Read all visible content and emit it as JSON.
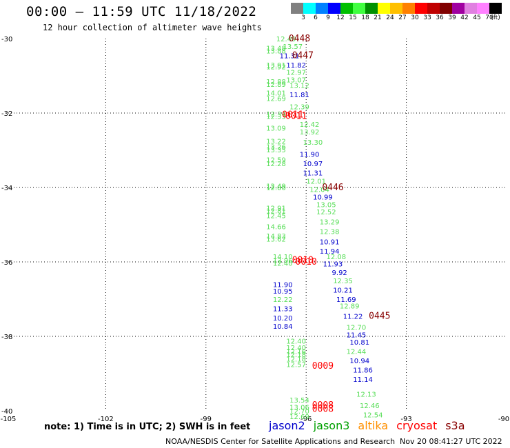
{
  "header": {
    "title": "00:00 – 11:59 UTC 11/18/2022",
    "subtitle": "12 hour collection of altimeter wave heights"
  },
  "colorbar": {
    "colors": [
      "#808080",
      "#00ffff",
      "#0080ff",
      "#0000ff",
      "#00c000",
      "#40ff40",
      "#009000",
      "#ffff00",
      "#ffc000",
      "#ff8000",
      "#ff0000",
      "#c00000",
      "#800000",
      "#a000a0",
      "#e080e0",
      "#ff80ff",
      "#000000"
    ],
    "labels": [
      "3",
      "6",
      "9",
      "12",
      "15",
      "18",
      "21",
      "24",
      "27",
      "30",
      "33",
      "36",
      "39",
      "42",
      "45",
      "70",
      "(ft)"
    ]
  },
  "chart_data": {
    "type": "scatter",
    "title": "00:00 – 11:59 UTC 11/18/2022",
    "subtitle": "12 hour collection of altimeter wave heights",
    "x_ticks": [
      "-105",
      "-102",
      "-99",
      "-96",
      "-93",
      "-90"
    ],
    "y_ticks": [
      "-30",
      "-32",
      "-34",
      "-36",
      "-38",
      "-40"
    ],
    "xlim": [
      -105,
      -90
    ],
    "ylim": [
      -40,
      -30
    ],
    "series": [
      {
        "name": "jason3",
        "color": "#55dd55",
        "points": [
          {
            "lon": -96.6,
            "lat": -30.0,
            "label": "12.49"
          },
          {
            "lon": -96.4,
            "lat": -30.2,
            "label": "13.57"
          },
          {
            "lon": -96.9,
            "lat": -30.25,
            "label": "13.48"
          },
          {
            "lon": -96.9,
            "lat": -30.32,
            "label": "13.88"
          },
          {
            "lon": -96.9,
            "lat": -30.7,
            "label": "13.91"
          },
          {
            "lon": -96.9,
            "lat": -30.75,
            "label": "12.92"
          },
          {
            "lon": -96.3,
            "lat": -30.9,
            "label": "12.97"
          },
          {
            "lon": -96.3,
            "lat": -31.1,
            "label": "13.07"
          },
          {
            "lon": -96.9,
            "lat": -31.15,
            "label": "12.88"
          },
          {
            "lon": -96.9,
            "lat": -31.22,
            "label": "12.89"
          },
          {
            "lon": -96.2,
            "lat": -31.25,
            "label": "13.12"
          },
          {
            "lon": -96.9,
            "lat": -31.45,
            "label": "14.01"
          },
          {
            "lon": -96.9,
            "lat": -31.6,
            "label": "12.69"
          },
          {
            "lon": -96.2,
            "lat": -31.82,
            "label": "12.39"
          },
          {
            "lon": -96.9,
            "lat": -32.02,
            "label": "12.34"
          },
          {
            "lon": -96.9,
            "lat": -32.08,
            "label": "12.33"
          },
          {
            "lon": -95.9,
            "lat": -32.3,
            "label": "12.42"
          },
          {
            "lon": -96.9,
            "lat": -32.4,
            "label": "13.09"
          },
          {
            "lon": -95.9,
            "lat": -32.5,
            "label": "13.92"
          },
          {
            "lon": -96.9,
            "lat": -32.75,
            "label": "13.22"
          },
          {
            "lon": -95.8,
            "lat": -32.78,
            "label": "13.30"
          },
          {
            "lon": -96.9,
            "lat": -32.9,
            "label": "13.26"
          },
          {
            "lon": -96.9,
            "lat": -32.98,
            "label": "13.35"
          },
          {
            "lon": -96.9,
            "lat": -33.25,
            "label": "12.59"
          },
          {
            "lon": -96.9,
            "lat": -33.35,
            "label": "12.28"
          },
          {
            "lon": -95.7,
            "lat": -33.82,
            "label": "12.01"
          },
          {
            "lon": -96.9,
            "lat": -33.95,
            "label": "12.49"
          },
          {
            "lon": -96.9,
            "lat": -34.0,
            "label": "12.00"
          },
          {
            "lon": -95.6,
            "lat": -34.05,
            "label": "12.04"
          },
          {
            "lon": -95.4,
            "lat": -34.45,
            "label": "13.05"
          },
          {
            "lon": -96.9,
            "lat": -34.55,
            "label": "12.91"
          },
          {
            "lon": -96.9,
            "lat": -34.62,
            "label": "12.81"
          },
          {
            "lon": -95.4,
            "lat": -34.65,
            "label": "12.52"
          },
          {
            "lon": -96.9,
            "lat": -34.75,
            "label": "12.45"
          },
          {
            "lon": -95.3,
            "lat": -34.92,
            "label": "13.29"
          },
          {
            "lon": -96.9,
            "lat": -35.05,
            "label": "14.66"
          },
          {
            "lon": -95.3,
            "lat": -35.18,
            "label": "12.38"
          },
          {
            "lon": -96.9,
            "lat": -35.3,
            "label": "14.83"
          },
          {
            "lon": -96.9,
            "lat": -35.38,
            "label": "13.62"
          },
          {
            "lon": -96.7,
            "lat": -35.85,
            "label": "14.10"
          },
          {
            "lon": -95.1,
            "lat": -35.85,
            "label": "12.08"
          },
          {
            "lon": -96.7,
            "lat": -35.95,
            "label": "13.96"
          },
          {
            "lon": -96.7,
            "lat": -36.03,
            "label": "12.40"
          },
          {
            "lon": -94.9,
            "lat": -36.5,
            "label": "12.35"
          },
          {
            "lon": -96.7,
            "lat": -37.0,
            "label": "12.22"
          },
          {
            "lon": -94.7,
            "lat": -37.18,
            "label": "12.89"
          },
          {
            "lon": -94.5,
            "lat": -37.75,
            "label": "12.70"
          },
          {
            "lon": -96.3,
            "lat": -38.12,
            "label": "12.40"
          },
          {
            "lon": -96.3,
            "lat": -38.3,
            "label": "12.40"
          },
          {
            "lon": -94.5,
            "lat": -38.4,
            "label": "12.44"
          },
          {
            "lon": -96.3,
            "lat": -38.4,
            "label": "12.16"
          },
          {
            "lon": -96.3,
            "lat": -38.48,
            "label": "12.18"
          },
          {
            "lon": -96.3,
            "lat": -38.6,
            "label": "12.18"
          },
          {
            "lon": -96.3,
            "lat": -38.75,
            "label": "12.57"
          },
          {
            "lon": -94.2,
            "lat": -39.55,
            "label": "12.13"
          },
          {
            "lon": -96.2,
            "lat": -39.7,
            "label": "13.54"
          },
          {
            "lon": -94.1,
            "lat": -39.85,
            "label": "12.46"
          },
          {
            "lon": -96.2,
            "lat": -39.9,
            "label": "13.06"
          },
          {
            "lon": -96.2,
            "lat": -40.0,
            "label": "12.70"
          },
          {
            "lon": -94.0,
            "lat": -40.1,
            "label": "12.54"
          },
          {
            "lon": -96.2,
            "lat": -40.15,
            "label": "12.69"
          }
        ]
      },
      {
        "name": "jason2",
        "color": "#0000cc",
        "points": [
          {
            "lon": -96.5,
            "lat": -30.45,
            "label": "11.31"
          },
          {
            "lon": -96.3,
            "lat": -30.7,
            "label": "11.82"
          },
          {
            "lon": -96.2,
            "lat": -31.5,
            "label": "11.81"
          },
          {
            "lon": -95.9,
            "lat": -33.1,
            "label": "11.90"
          },
          {
            "lon": -95.8,
            "lat": -33.35,
            "label": "10.97"
          },
          {
            "lon": -95.8,
            "lat": -33.6,
            "label": "11.31"
          },
          {
            "lon": -95.5,
            "lat": -34.25,
            "label": "10.99"
          },
          {
            "lon": -95.3,
            "lat": -35.45,
            "label": "10.91"
          },
          {
            "lon": -95.3,
            "lat": -35.7,
            "label": "11.94"
          },
          {
            "lon": -95.2,
            "lat": -36.05,
            "label": "11.93"
          },
          {
            "lon": -95.0,
            "lat": -36.28,
            "label": "9.92"
          },
          {
            "lon": -96.7,
            "lat": -36.6,
            "label": "11.90"
          },
          {
            "lon": -96.7,
            "lat": -36.78,
            "label": "10.95"
          },
          {
            "lon": -94.9,
            "lat": -36.75,
            "label": "10.21"
          },
          {
            "lon": -94.8,
            "lat": -37.0,
            "label": "11.69"
          },
          {
            "lon": -96.7,
            "lat": -37.25,
            "label": "11.33"
          },
          {
            "lon": -96.7,
            "lat": -37.5,
            "label": "10.20"
          },
          {
            "lon": -94.6,
            "lat": -37.45,
            "label": "11.22"
          },
          {
            "lon": -96.7,
            "lat": -37.72,
            "label": "10.84"
          },
          {
            "lon": -94.5,
            "lat": -37.95,
            "label": "11.45"
          },
          {
            "lon": -94.4,
            "lat": -38.15,
            "label": "10.81"
          },
          {
            "lon": -94.4,
            "lat": -38.65,
            "label": "10.94"
          },
          {
            "lon": -94.3,
            "lat": -38.9,
            "label": "11.86"
          },
          {
            "lon": -94.3,
            "lat": -39.15,
            "label": "11.14"
          }
        ]
      },
      {
        "name": "s3a",
        "color": "#880000",
        "points": [
          {
            "lon": -96.2,
            "lat": -30.0,
            "label": "0448"
          },
          {
            "lon": -96.1,
            "lat": -30.45,
            "label": "0447"
          },
          {
            "lon": -95.2,
            "lat": -34.0,
            "label": "0446"
          },
          {
            "lon": -93.8,
            "lat": -37.45,
            "label": "0445"
          }
        ]
      },
      {
        "name": "cryosat",
        "color": "#ff0000",
        "points": [
          {
            "lon": -96.4,
            "lat": -32.05,
            "label": "0011"
          },
          {
            "lon": -96.3,
            "lat": -32.08,
            "label": "0011"
          },
          {
            "lon": -96.1,
            "lat": -35.95,
            "label": "0010"
          },
          {
            "lon": -96.0,
            "lat": -36.0,
            "label": "0010"
          },
          {
            "lon": -95.5,
            "lat": -38.8,
            "label": "0009"
          },
          {
            "lon": -95.5,
            "lat": -39.85,
            "label": "0008"
          },
          {
            "lon": -95.5,
            "lat": -39.95,
            "label": "0008"
          }
        ]
      }
    ]
  },
  "footer": {
    "note": "note: 1) Time is in UTC; 2) SWH is in feet",
    "satellites": [
      {
        "name": "jason2",
        "color": "#0000cc"
      },
      {
        "name": "jason3",
        "color": "#00a000"
      },
      {
        "name": "altika",
        "color": "#ff9000"
      },
      {
        "name": "cryosat",
        "color": "#ff0000"
      },
      {
        "name": "s3a",
        "color": "#880000"
      }
    ],
    "credit": "NOAA/NESDIS Center for Satellite Applications and Research",
    "timestamp": "Nov 20 08:41:27 UTC 2022"
  }
}
